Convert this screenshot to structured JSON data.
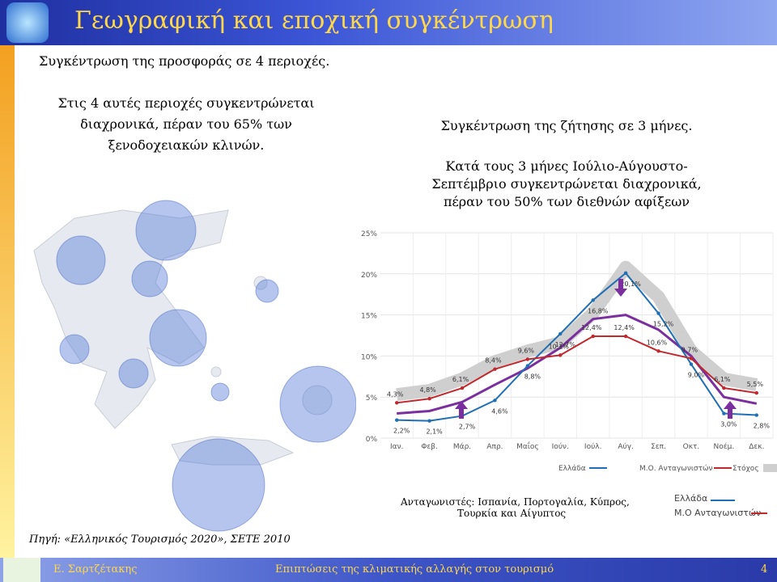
{
  "header": {
    "title": "Γεωγραφική και εποχική συγκέντρωση"
  },
  "left": {
    "heading": "Συγκέντρωση της προσφοράς σε 4 περιοχές.",
    "text": [
      "Στις 4 αυτές περιοχές συγκεντρώνεται",
      "διαχρονικά, πέραν του 65% των",
      "ξενοδοχειακών κλινών."
    ],
    "source": "Πηγή: «Ελληνικός Τουρισμός 2020», ΣΕΤΕ 2010"
  },
  "right": {
    "heading": "Συγκέντρωση της ζήτησης σε 3 μήνες.",
    "text": [
      "Κατά τους 3 μήνες Ιούλιο-Αύγουστο-",
      "Σεπτέμβριο συγκεντρώνεται διαχρονικά,",
      "πέραν του 50% των διεθνών αφίξεων"
    ],
    "note": [
      "Ανταγωνιστές: Ισπανία, Πορτογαλία, Κύπρος,",
      "Τουρκία και Αίγυπτος"
    ],
    "legend2": [
      "Ελλάδα",
      "Μ.Ο Ανταγωνιστών"
    ]
  },
  "chart_data": {
    "type": "line",
    "categories": [
      "Ιαν.",
      "Φεβ.",
      "Μάρ.",
      "Απρ.",
      "Μαΐος",
      "Ιούν.",
      "Ιούλ.",
      "Αύγ.",
      "Σεπ.",
      "Οκτ.",
      "Νοέμ.",
      "Δεκ."
    ],
    "ylim": [
      0,
      25
    ],
    "yticks": [
      {
        "value": 0,
        "label": "0%"
      },
      {
        "value": 5,
        "label": "5%"
      },
      {
        "value": 10,
        "label": "10%"
      },
      {
        "value": 15,
        "label": "15%"
      },
      {
        "value": 20,
        "label": "20%"
      },
      {
        "value": 25,
        "label": "25%"
      }
    ],
    "grid": true,
    "series": [
      {
        "name": "Στόχος",
        "color": "#cfcfcf",
        "values": [
          5.3,
          5.8,
          7.2,
          9.3,
          10.6,
          11.6,
          15.2,
          20.8,
          17.2,
          10.6,
          7.2,
          6.5
        ]
      },
      {
        "color": "#7b2f9e",
        "values": [
          3.0,
          3.3,
          4.4,
          6.5,
          8.5,
          11.0,
          14.5,
          15.0,
          13.2,
          10.0,
          5.0,
          4.2
        ]
      },
      {
        "name": "Ελλάδα",
        "color": "#1f6fb5",
        "values": [
          2.2,
          2.1,
          2.7,
          4.6,
          8.8,
          12.7,
          16.8,
          20.1,
          15.2,
          9.0,
          3.0,
          2.8
        ],
        "value_labels": [
          "2,2%",
          "2,1%",
          "2,7%",
          "4,6%",
          "8,8%",
          "12,7%",
          "16,8%",
          "20,1%",
          "15,2%",
          "9,0%",
          "3,0%",
          "2,8%"
        ]
      },
      {
        "name": "Μ.Ο. Ανταγωνιστών",
        "color": "#c0282e",
        "values": [
          4.3,
          4.8,
          6.1,
          8.4,
          9.6,
          10.1,
          12.4,
          12.4,
          10.6,
          9.7,
          6.1,
          5.5
        ],
        "value_labels": [
          "4,3%",
          "4,8%",
          "6,1%",
          "8,4%",
          "9,6%",
          "10,1%",
          "12,4%",
          "12,4%",
          "10,6%",
          "9,7%",
          "6,1%",
          "5,5%"
        ]
      }
    ]
  },
  "footer": {
    "author": "Ε. Σαρτζέτακης",
    "title": "Επιπτώσεις της κλιματικής αλλαγής στον τουρισμό",
    "page": "4"
  }
}
